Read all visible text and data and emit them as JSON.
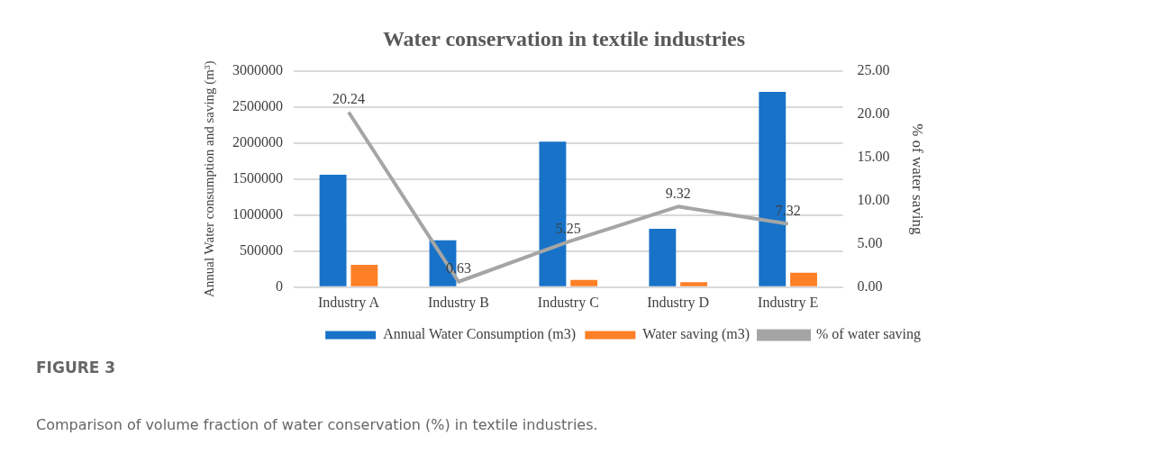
{
  "chart_data": {
    "type": "bar",
    "title": "Water conservation in textile industries",
    "categories": [
      "Industry A",
      "Industry B",
      "Industry C",
      "Industry D",
      "Industry E"
    ],
    "series": [
      {
        "name": "Annual Water Consumption (m3)",
        "color": "#1872c8",
        "values": [
          1560000,
          650000,
          2020000,
          810000,
          2710000
        ]
      },
      {
        "name": "Water saving (m3)",
        "color": "#fd7f26",
        "values": [
          310000,
          null,
          100000,
          70000,
          200000
        ]
      },
      {
        "name": "% of water saving",
        "type": "line",
        "axis": "y2",
        "color": "#a5a5a5",
        "values": [
          20.24,
          0.63,
          5.25,
          9.32,
          7.32
        ],
        "value_labels": [
          "20.24",
          "0.63",
          "5.25",
          "9.32",
          "7.32"
        ]
      }
    ],
    "ylabel": "Annual Water consumption and saving (m³)",
    "y2label": "% of water saving",
    "ylim": [
      0,
      3000000
    ],
    "yticks": [
      0,
      500000,
      1000000,
      1500000,
      2000000,
      2500000,
      3000000
    ],
    "y2lim": [
      0,
      25
    ],
    "y2ticks": [
      {
        "value": 0,
        "label": "0.00"
      },
      {
        "value": 5,
        "label": "5.00"
      },
      {
        "value": 10,
        "label": "10.00"
      },
      {
        "value": 15,
        "label": "15.00"
      },
      {
        "value": 20,
        "label": "20.00"
      },
      {
        "value": 25,
        "label": "25.00"
      }
    ],
    "grid": "y",
    "legend": "bottom",
    "marker": "none",
    "line_style": "solid",
    "annotations": [
      "FIGURE 3",
      "Comparison of volume fraction of water conservation (%) in textile industries."
    ]
  }
}
